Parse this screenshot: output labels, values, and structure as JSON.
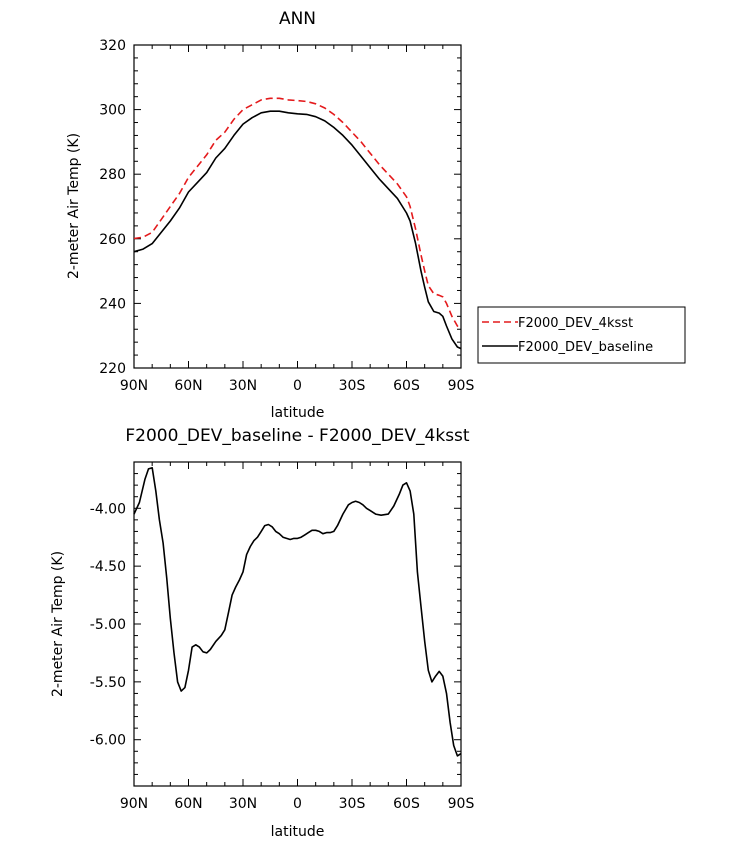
{
  "chart_data": [
    {
      "type": "line",
      "title": "ANN",
      "xlabel": "latitude",
      "ylabel": "2-meter Air Temp (K)",
      "x_tick_labels": [
        "90N",
        "60N",
        "30N",
        "0",
        "30S",
        "60S",
        "90S"
      ],
      "y_tick_labels": [
        "220",
        "240",
        "260",
        "280",
        "300",
        "320"
      ],
      "xlim": [
        90,
        -90
      ],
      "ylim": [
        220,
        320
      ],
      "grid": false,
      "legend_position": "right",
      "x": [
        90,
        85,
        80,
        75,
        70,
        65,
        60,
        55,
        50,
        45,
        40,
        35,
        30,
        25,
        20,
        15,
        10,
        5,
        0,
        -5,
        -10,
        -15,
        -20,
        -25,
        -30,
        -35,
        -40,
        -45,
        -50,
        -55,
        -60,
        -62,
        -65,
        -68,
        -70,
        -72,
        -75,
        -78,
        -80,
        -82,
        -85,
        -88,
        -90
      ],
      "series": [
        {
          "name": "F2000_DEV_4ksst",
          "color": "#e41a1c",
          "dash": "dashed",
          "values": [
            260.1,
            260.5,
            262.0,
            266.0,
            270.0,
            274.0,
            279.0,
            282.5,
            286.0,
            290.5,
            293.0,
            297.0,
            300.0,
            301.5,
            303.0,
            303.5,
            303.5,
            303.0,
            302.8,
            302.5,
            301.8,
            300.5,
            298.5,
            296.0,
            293.0,
            290.0,
            286.5,
            283.0,
            280.0,
            277.0,
            273.0,
            270.0,
            263.0,
            255.0,
            250.0,
            245.5,
            243.0,
            242.5,
            242.0,
            240.0,
            236.0,
            233.0,
            232.0
          ]
        },
        {
          "name": "F2000_DEV_baseline",
          "color": "#000000",
          "dash": "solid",
          "values": [
            256.0,
            256.8,
            258.5,
            262.0,
            265.5,
            269.5,
            274.5,
            277.5,
            280.5,
            285.0,
            288.0,
            292.0,
            295.5,
            297.5,
            299.0,
            299.5,
            299.5,
            299.0,
            298.7,
            298.5,
            297.8,
            296.5,
            294.5,
            292.0,
            289.0,
            285.5,
            282.0,
            278.5,
            275.5,
            272.5,
            268.0,
            265.5,
            258.5,
            250.0,
            245.0,
            240.5,
            237.5,
            237.0,
            236.0,
            233.0,
            229.0,
            226.5,
            226.0
          ]
        }
      ]
    },
    {
      "type": "line",
      "title": "F2000_DEV_baseline - F2000_DEV_4ksst",
      "xlabel": "latitude",
      "ylabel": "2-meter Air Temp (K)",
      "x_tick_labels": [
        "90N",
        "60N",
        "30N",
        "0",
        "30S",
        "60S",
        "90S"
      ],
      "y_tick_labels": [
        "-4.00",
        "-4.50",
        "-5.00",
        "-5.50",
        "-6.00"
      ],
      "xlim": [
        90,
        -90
      ],
      "ylim": [
        -6.4,
        -3.6
      ],
      "grid": false,
      "x": [
        90,
        87,
        84,
        82,
        80,
        78,
        76,
        74,
        72,
        70,
        68,
        66,
        64,
        62,
        60,
        58,
        56,
        54,
        52,
        50,
        48,
        45,
        42,
        40,
        38,
        36,
        34,
        32,
        30,
        28,
        26,
        24,
        22,
        20,
        18,
        16,
        14,
        12,
        10,
        8,
        6,
        4,
        2,
        0,
        -2,
        -4,
        -6,
        -8,
        -10,
        -12,
        -14,
        -16,
        -18,
        -20,
        -22,
        -25,
        -28,
        -30,
        -32,
        -34,
        -36,
        -38,
        -40,
        -43,
        -46,
        -50,
        -53,
        -56,
        -58,
        -60,
        -62,
        -64,
        -65,
        -66,
        -68,
        -70,
        -72,
        -74,
        -76,
        -78,
        -80,
        -82,
        -84,
        -86,
        -88,
        -90
      ],
      "series": [
        {
          "name": "",
          "color": "#000000",
          "dash": "solid",
          "values": [
            -4.05,
            -3.95,
            -3.75,
            -3.66,
            -3.65,
            -3.85,
            -4.1,
            -4.3,
            -4.6,
            -4.95,
            -5.25,
            -5.5,
            -5.58,
            -5.55,
            -5.4,
            -5.2,
            -5.18,
            -5.2,
            -5.24,
            -5.25,
            -5.22,
            -5.15,
            -5.1,
            -5.05,
            -4.9,
            -4.75,
            -4.68,
            -4.62,
            -4.55,
            -4.4,
            -4.33,
            -4.28,
            -4.25,
            -4.2,
            -4.15,
            -4.14,
            -4.16,
            -4.2,
            -4.22,
            -4.25,
            -4.26,
            -4.27,
            -4.26,
            -4.26,
            -4.25,
            -4.23,
            -4.21,
            -4.19,
            -4.19,
            -4.2,
            -4.22,
            -4.21,
            -4.21,
            -4.2,
            -4.15,
            -4.05,
            -3.97,
            -3.95,
            -3.94,
            -3.95,
            -3.97,
            -4.0,
            -4.02,
            -4.05,
            -4.06,
            -4.05,
            -3.98,
            -3.88,
            -3.8,
            -3.78,
            -3.85,
            -4.05,
            -4.3,
            -4.55,
            -4.85,
            -5.15,
            -5.4,
            -5.5,
            -5.45,
            -5.41,
            -5.45,
            -5.6,
            -5.85,
            -6.05,
            -6.14,
            -6.12
          ]
        }
      ]
    }
  ]
}
